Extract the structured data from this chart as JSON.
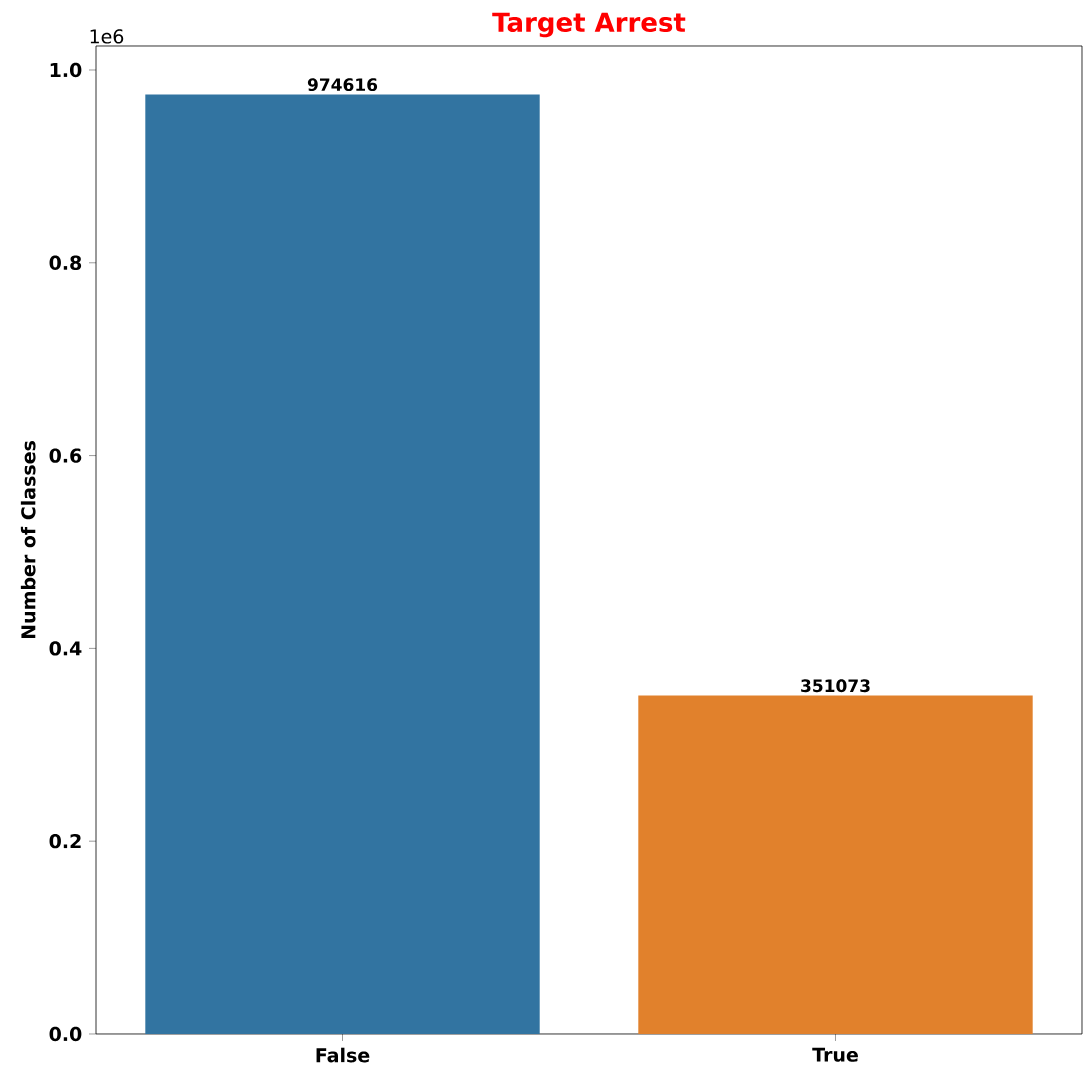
{
  "chart_data": {
    "type": "bar",
    "title": "Target Arrest",
    "ylabel": "Number of Classes",
    "categories": [
      "False",
      "True"
    ],
    "values": [
      0.974616,
      0.351073
    ],
    "colors": [
      "#3274a1",
      "#e1812c"
    ],
    "ylim": [
      0,
      1.0249
    ],
    "yticks": [
      {
        "value": 0,
        "label": "0.0"
      },
      0.2,
      0.4,
      0.6,
      0.8,
      {
        "value": 1,
        "label": "1.0"
      }
    ],
    "annotations": [
      "1e6",
      {
        "text": "974616",
        "x": "False",
        "y": 0.974616
      },
      {
        "text": "351073",
        "x": "True",
        "y": 0.351073
      }
    ]
  }
}
